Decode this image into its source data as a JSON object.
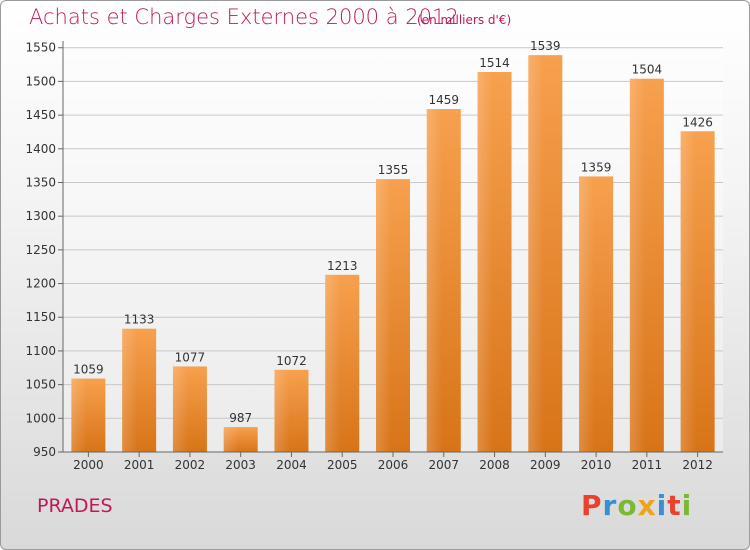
{
  "header": {
    "title": "Achats et Charges Externes 2000 à 2012",
    "subtitle": "(en milliers d'€)"
  },
  "footer": {
    "place": "PRADES",
    "logo_text": "Proxiti"
  },
  "colors": {
    "title": "#c0185a",
    "bar_top": "#f7a04e",
    "bar_bottom": "#d87418",
    "grid": "#c8c8c8",
    "logo_letters": [
      "#e8412c",
      "#3a8ed6",
      "#7cb932",
      "#f0a21d",
      "#3a8ed6",
      "#e8412c",
      "#7cb932"
    ]
  },
  "chart_data": {
    "type": "bar",
    "title": "Achats et Charges Externes 2000 à 2012",
    "categories": [
      "2000",
      "2001",
      "2002",
      "2003",
      "2004",
      "2005",
      "2006",
      "2007",
      "2008",
      "2009",
      "2010",
      "2011",
      "2012"
    ],
    "values": [
      1059,
      1133,
      1077,
      987,
      1072,
      1213,
      1355,
      1459,
      1514,
      1539,
      1359,
      1504,
      1426
    ],
    "ylim": [
      950,
      1560
    ],
    "yticks": [
      950,
      1000,
      1050,
      1100,
      1150,
      1200,
      1250,
      1300,
      1350,
      1400,
      1450,
      1500,
      1550
    ],
    "grid": true,
    "xlabel": "",
    "ylabel": ""
  }
}
